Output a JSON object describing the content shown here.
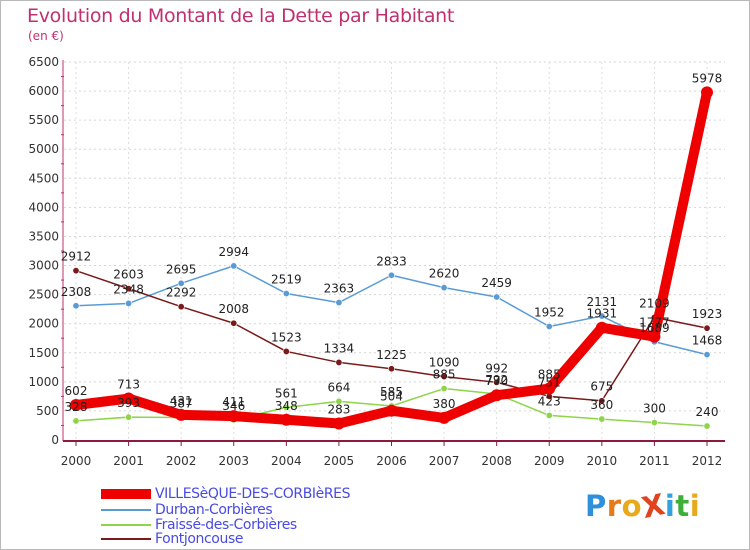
{
  "title": "Evolution du Montant de la Dette par Habitant",
  "unit": "(en €)",
  "logo": {
    "text": "ProXiti",
    "letter_colors": [
      "#2f8fd8",
      "#e87a1a",
      "#e8a91a",
      "#e0431e",
      "#33a0e0",
      "#3fae3a",
      "#e8a91a"
    ]
  },
  "chart_data": {
    "type": "line",
    "x": [
      "2000",
      "2001",
      "2002",
      "2003",
      "2004",
      "2005",
      "2006",
      "2007",
      "2008",
      "2009",
      "2010",
      "2011",
      "2012"
    ],
    "ylim": [
      0,
      6500
    ],
    "yticks": [
      0,
      500,
      1000,
      1500,
      2000,
      2500,
      3000,
      3500,
      4000,
      4500,
      5000,
      5500,
      6000,
      6500
    ],
    "grid": true,
    "legend_position": "bottom-left",
    "series": [
      {
        "name": "VILLESèQUE-DES-CORBIèRES",
        "color": "#ee0000",
        "values": [
          602,
          713,
          431,
          411,
          348,
          283,
          504,
          380,
          770,
          885,
          1931,
          1777,
          5978
        ],
        "labels": [
          "602",
          "713",
          "431",
          "411",
          "348",
          "283",
          "504",
          "380",
          "770",
          "885",
          "1931",
          "1777",
          "5978"
        ]
      },
      {
        "name": "Durban-Corbières",
        "color": "#5b9bd5",
        "values": [
          2308,
          2348,
          2695,
          2994,
          2519,
          2363,
          2833,
          2620,
          2459,
          1952,
          2131,
          1689,
          1468
        ],
        "labels": [
          "2308",
          "2348",
          "2695",
          "2994",
          "2519",
          "2363",
          "2833",
          "2620",
          "2459",
          "1952",
          "2131",
          "1689",
          "1468"
        ]
      },
      {
        "name": "Fraissé-des-Corbières",
        "color": "#8fd44a",
        "values": [
          328,
          393,
          387,
          346,
          561,
          664,
          585,
          885,
          792,
          423,
          360,
          300,
          240
        ],
        "labels": [
          "328",
          "393",
          "387",
          "346",
          "561",
          "664",
          "585",
          "885",
          "792",
          "423",
          "360",
          "300",
          "240"
        ]
      },
      {
        "name": "Fontjoncouse",
        "color": "#7a1a1a",
        "values": [
          2912,
          2603,
          2292,
          2008,
          1523,
          1334,
          1225,
          1090,
          992,
          751,
          675,
          2109,
          1923
        ],
        "labels": [
          "2912",
          "2603",
          "2292",
          "2008",
          "1523",
          "1334",
          "1225",
          "1090",
          "992",
          "751",
          "675",
          "2109",
          "1923"
        ]
      }
    ]
  }
}
